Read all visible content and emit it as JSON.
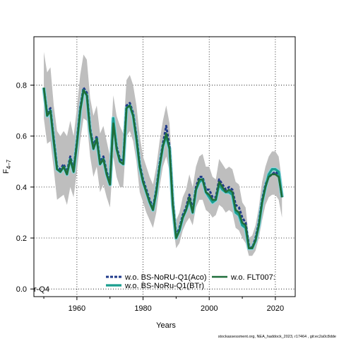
{
  "chart_data": {
    "type": "line",
    "xlabel": "Years",
    "ylabel": "F",
    "ylabel_sub": "4–7",
    "xlim": [
      1947,
      2026
    ],
    "ylim": [
      -0.03,
      0.99
    ],
    "xticks": [
      1960,
      1980,
      2000,
      2020
    ],
    "xtick_labels": [
      "1960",
      "1980",
      "2000",
      "2020"
    ],
    "yticks": [
      0.0,
      0.2,
      0.4,
      0.6,
      0.8
    ],
    "ytick_labels": [
      "0.0",
      "0.2",
      "0.4",
      "0.6",
      "0.8"
    ],
    "grid": true,
    "legend_position": "bottom",
    "corner_label": "r-Q4",
    "colors": {
      "ci_band": "#bebebe",
      "series_aco": "#1f3a8a",
      "series_btr": "#1a9e8f",
      "series_flt": "#1f6e3a",
      "light_band": "#8fd6e0"
    },
    "x": [
      1950,
      1951,
      1952,
      1953,
      1954,
      1955,
      1956,
      1957,
      1958,
      1959,
      1960,
      1961,
      1962,
      1963,
      1964,
      1965,
      1966,
      1967,
      1968,
      1969,
      1970,
      1971,
      1972,
      1973,
      1974,
      1975,
      1976,
      1977,
      1978,
      1979,
      1980,
      1981,
      1982,
      1983,
      1984,
      1985,
      1986,
      1987,
      1988,
      1989,
      1990,
      1991,
      1992,
      1993,
      1994,
      1995,
      1996,
      1997,
      1998,
      1999,
      2000,
      2001,
      2002,
      2003,
      2004,
      2005,
      2006,
      2007,
      2008,
      2009,
      2010,
      2011,
      2012,
      2013,
      2014,
      2015,
      2016,
      2017,
      2018,
      2019,
      2020,
      2021,
      2022
    ],
    "ci_upper": [
      0.93,
      0.85,
      0.87,
      0.72,
      0.62,
      0.6,
      0.62,
      0.6,
      0.66,
      0.6,
      0.71,
      0.84,
      0.92,
      0.9,
      0.75,
      0.68,
      0.72,
      0.61,
      0.64,
      0.58,
      0.52,
      0.76,
      0.68,
      0.64,
      0.61,
      0.82,
      0.84,
      0.8,
      0.72,
      0.6,
      0.52,
      0.48,
      0.44,
      0.41,
      0.48,
      0.58,
      0.66,
      0.72,
      0.65,
      0.42,
      0.27,
      0.3,
      0.36,
      0.39,
      0.45,
      0.4,
      0.48,
      0.52,
      0.53,
      0.48,
      0.48,
      0.44,
      0.43,
      0.51,
      0.49,
      0.47,
      0.48,
      0.47,
      0.42,
      0.41,
      0.34,
      0.32,
      0.2,
      0.21,
      0.25,
      0.32,
      0.42,
      0.48,
      0.52,
      0.54,
      0.54,
      0.52,
      0.42
    ],
    "ci_lower": [
      0.67,
      0.57,
      0.58,
      0.47,
      0.35,
      0.36,
      0.37,
      0.33,
      0.4,
      0.36,
      0.46,
      0.58,
      0.67,
      0.66,
      0.52,
      0.44,
      0.48,
      0.38,
      0.41,
      0.36,
      0.32,
      0.52,
      0.44,
      0.4,
      0.4,
      0.6,
      0.62,
      0.58,
      0.5,
      0.38,
      0.34,
      0.3,
      0.27,
      0.24,
      0.3,
      0.4,
      0.48,
      0.52,
      0.46,
      0.26,
      0.16,
      0.18,
      0.23,
      0.26,
      0.28,
      0.25,
      0.32,
      0.35,
      0.35,
      0.31,
      0.3,
      0.28,
      0.29,
      0.33,
      0.32,
      0.3,
      0.31,
      0.3,
      0.24,
      0.23,
      0.2,
      0.18,
      0.13,
      0.13,
      0.15,
      0.2,
      0.27,
      0.33,
      0.36,
      0.37,
      0.37,
      0.35,
      0.28
    ],
    "series": [
      {
        "name": "w.o. BS-NoRU-Q1(Aco)",
        "values": [
          0.79,
          0.69,
          0.71,
          0.59,
          0.48,
          0.47,
          0.49,
          0.46,
          0.52,
          0.47,
          0.58,
          0.71,
          0.79,
          0.77,
          0.63,
          0.56,
          0.6,
          0.5,
          0.52,
          0.46,
          0.42,
          0.66,
          0.56,
          0.51,
          0.5,
          0.72,
          0.73,
          0.69,
          0.6,
          0.49,
          0.43,
          0.39,
          0.35,
          0.32,
          0.39,
          0.49,
          0.57,
          0.64,
          0.56,
          0.34,
          0.21,
          0.24,
          0.29,
          0.32,
          0.37,
          0.31,
          0.4,
          0.44,
          0.44,
          0.39,
          0.39,
          0.36,
          0.36,
          0.43,
          0.41,
          0.39,
          0.4,
          0.39,
          0.33,
          0.32,
          0.28,
          0.26,
          0.17,
          0.16,
          0.2,
          0.26,
          0.35,
          0.41,
          0.44,
          0.45,
          0.46,
          0.45,
          0.36
        ]
      },
      {
        "name": "w.o. BS-NoRu-Q1(BTr)",
        "values": [
          0.79,
          0.68,
          0.7,
          0.58,
          0.47,
          0.46,
          0.48,
          0.45,
          0.51,
          0.46,
          0.57,
          0.7,
          0.78,
          0.76,
          0.62,
          0.55,
          0.59,
          0.49,
          0.51,
          0.45,
          0.41,
          0.67,
          0.55,
          0.5,
          0.49,
          0.71,
          0.72,
          0.68,
          0.59,
          0.48,
          0.42,
          0.38,
          0.34,
          0.31,
          0.38,
          0.48,
          0.56,
          0.6,
          0.55,
          0.33,
          0.2,
          0.23,
          0.28,
          0.31,
          0.35,
          0.3,
          0.39,
          0.42,
          0.43,
          0.38,
          0.36,
          0.34,
          0.35,
          0.41,
          0.39,
          0.38,
          0.38,
          0.37,
          0.3,
          0.29,
          0.25,
          0.24,
          0.16,
          0.16,
          0.19,
          0.25,
          0.34,
          0.4,
          0.45,
          0.47,
          0.47,
          0.46,
          0.36
        ]
      },
      {
        "name": "w.o. FLT007:",
        "values": [
          0.79,
          0.68,
          0.7,
          0.58,
          0.47,
          0.46,
          0.48,
          0.45,
          0.51,
          0.46,
          0.57,
          0.7,
          0.78,
          0.76,
          0.62,
          0.55,
          0.59,
          0.49,
          0.51,
          0.45,
          0.41,
          0.65,
          0.55,
          0.5,
          0.49,
          0.71,
          0.72,
          0.68,
          0.59,
          0.48,
          0.42,
          0.38,
          0.34,
          0.31,
          0.38,
          0.48,
          0.56,
          0.61,
          0.55,
          0.33,
          0.2,
          0.23,
          0.28,
          0.31,
          0.36,
          0.3,
          0.39,
          0.43,
          0.43,
          0.38,
          0.37,
          0.35,
          0.35,
          0.42,
          0.4,
          0.38,
          0.39,
          0.38,
          0.31,
          0.3,
          0.26,
          0.25,
          0.16,
          0.16,
          0.19,
          0.25,
          0.34,
          0.4,
          0.44,
          0.45,
          0.45,
          0.44,
          0.36
        ]
      }
    ]
  },
  "footer": {
    "source_text": "stockassessment.org, NEA_haddock_2023, r17464 , git:ec2a0c8dde"
  }
}
